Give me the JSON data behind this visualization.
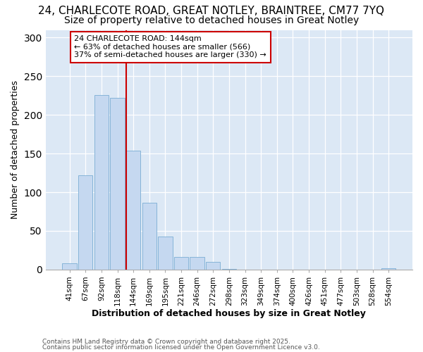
{
  "title1": "24, CHARLECOTE ROAD, GREAT NOTLEY, BRAINTREE, CM77 7YQ",
  "title2": "Size of property relative to detached houses in Great Notley",
  "xlabel": "Distribution of detached houses by size in Great Notley",
  "ylabel": "Number of detached properties",
  "categories": [
    "41sqm",
    "67sqm",
    "92sqm",
    "118sqm",
    "144sqm",
    "169sqm",
    "195sqm",
    "221sqm",
    "246sqm",
    "272sqm",
    "298sqm",
    "323sqm",
    "349sqm",
    "374sqm",
    "400sqm",
    "426sqm",
    "451sqm",
    "477sqm",
    "503sqm",
    "528sqm",
    "554sqm"
  ],
  "values": [
    8,
    122,
    226,
    222,
    154,
    86,
    43,
    16,
    16,
    10,
    1,
    0,
    0,
    0,
    0,
    0,
    0,
    0,
    0,
    0,
    2
  ],
  "bar_color": "#c5d8f0",
  "bar_edge_color": "#7aadd4",
  "highlight_bin_index": 4,
  "annotation_title": "24 CHARLECOTE ROAD: 144sqm",
  "annotation_line1": "← 63% of detached houses are smaller (566)",
  "annotation_line2": "37% of semi-detached houses are larger (330) →",
  "annotation_box_color": "#ffffff",
  "annotation_box_edge_color": "#cc0000",
  "vline_color": "#cc0000",
  "footer1": "Contains HM Land Registry data © Crown copyright and database right 2025.",
  "footer2": "Contains public sector information licensed under the Open Government Licence v3.0.",
  "ylim": [
    0,
    310
  ],
  "yticks": [
    0,
    50,
    100,
    150,
    200,
    250,
    300
  ],
  "fig_bg_color": "#ffffff",
  "plot_bg_color": "#dce8f5",
  "title_fontsize": 11,
  "subtitle_fontsize": 10,
  "grid_color": "#ffffff",
  "bar_width": 0.9
}
